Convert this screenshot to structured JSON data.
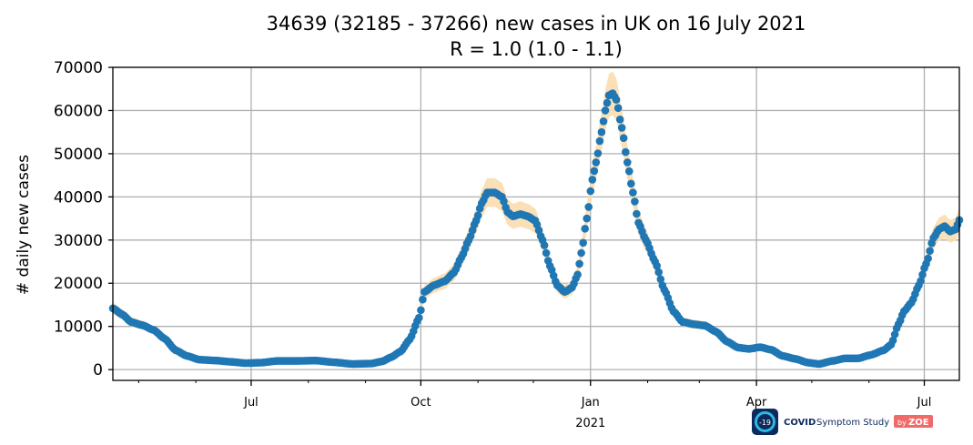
{
  "chart_data": {
    "type": "scatter",
    "title_line1": "34639 (32185 - 37266) new cases in UK on 16 July 2021",
    "title_line2": "R = 1.0 (1.0 - 1.1)",
    "ylabel": "# daily new cases",
    "xlabel": "",
    "ylim": [
      -2500,
      70000
    ],
    "xlim": [
      "2020-04-17",
      "2021-07-20"
    ],
    "yticks": [
      "0",
      "10000",
      "20000",
      "30000",
      "40000",
      "50000",
      "60000",
      "70000"
    ],
    "ytick_values": [
      0,
      10000,
      20000,
      30000,
      40000,
      50000,
      60000,
      70000
    ],
    "xticks": [
      {
        "date": "2020-07-01",
        "label": "Jul",
        "sublabel": ""
      },
      {
        "date": "2020-10-01",
        "label": "Oct",
        "sublabel": ""
      },
      {
        "date": "2021-01-01",
        "label": "Jan",
        "sublabel": "2021"
      },
      {
        "date": "2021-04-01",
        "label": "Apr",
        "sublabel": ""
      },
      {
        "date": "2021-07-01",
        "label": "Jul",
        "sublabel": ""
      }
    ],
    "minor_ticks": [
      "2020-05-01",
      "2020-06-01",
      "2020-08-01",
      "2020-09-01",
      "2020-11-01",
      "2020-12-01",
      "2021-02-01",
      "2021-03-01",
      "2021-05-01",
      "2021-06-01"
    ],
    "grid": true,
    "point_color": "#1f77b4",
    "band_color": "#fbdcae",
    "series": [
      {
        "values_knots": [
          [
            "2020-04-17",
            14200
          ],
          [
            "2020-04-22",
            12800
          ],
          [
            "2020-04-27",
            11000
          ],
          [
            "2020-05-03",
            10300
          ],
          [
            "2020-05-09",
            9200
          ],
          [
            "2020-05-15",
            7200
          ],
          [
            "2020-05-21",
            4500
          ],
          [
            "2020-05-27",
            3200
          ],
          [
            "2020-06-03",
            2300
          ],
          [
            "2020-06-12",
            2100
          ],
          [
            "2020-06-20",
            1800
          ],
          [
            "2020-06-28",
            1500
          ],
          [
            "2020-07-06",
            1600
          ],
          [
            "2020-07-15",
            2000
          ],
          [
            "2020-07-25",
            2000
          ],
          [
            "2020-08-05",
            2100
          ],
          [
            "2020-08-15",
            1700
          ],
          [
            "2020-08-25",
            1300
          ],
          [
            "2020-09-04",
            1400
          ],
          [
            "2020-09-10",
            1900
          ],
          [
            "2020-09-15",
            2900
          ],
          [
            "2020-09-20",
            4200
          ],
          [
            "2020-09-25",
            7000
          ],
          [
            "2020-09-30",
            12000
          ],
          [
            "2020-10-03",
            18000
          ],
          [
            "2020-10-08",
            19500
          ],
          [
            "2020-10-14",
            20500
          ],
          [
            "2020-10-19",
            22500
          ],
          [
            "2020-10-23",
            26000
          ],
          [
            "2020-10-27",
            30000
          ],
          [
            "2020-10-31",
            34500
          ],
          [
            "2020-11-03",
            38500
          ],
          [
            "2020-11-06",
            41000
          ],
          [
            "2020-11-10",
            41000
          ],
          [
            "2020-11-14",
            40000
          ],
          [
            "2020-11-17",
            36500
          ],
          [
            "2020-11-20",
            35500
          ],
          [
            "2020-11-24",
            36000
          ],
          [
            "2020-11-28",
            35500
          ],
          [
            "2020-12-02",
            34500
          ],
          [
            "2020-12-06",
            30000
          ],
          [
            "2020-12-10",
            24000
          ],
          [
            "2020-12-14",
            19500
          ],
          [
            "2020-12-18",
            18000
          ],
          [
            "2020-12-22",
            19000
          ],
          [
            "2020-12-25",
            22000
          ],
          [
            "2020-12-27",
            27000
          ],
          [
            "2020-12-30",
            35000
          ],
          [
            "2021-01-02",
            44000
          ],
          [
            "2021-01-04",
            48000
          ],
          [
            "2021-01-07",
            55000
          ],
          [
            "2021-01-09",
            60000
          ],
          [
            "2021-01-11",
            63500
          ],
          [
            "2021-01-13",
            64000
          ],
          [
            "2021-01-15",
            62500
          ],
          [
            "2021-01-18",
            56000
          ],
          [
            "2021-01-21",
            48000
          ],
          [
            "2021-01-24",
            41000
          ],
          [
            "2021-01-27",
            34000
          ],
          [
            "2021-01-31",
            30000
          ],
          [
            "2021-02-05",
            25000
          ],
          [
            "2021-02-10",
            18500
          ],
          [
            "2021-02-15",
            13500
          ],
          [
            "2021-02-20",
            11000
          ],
          [
            "2021-02-26",
            10500
          ],
          [
            "2021-03-04",
            10200
          ],
          [
            "2021-03-10",
            8800
          ],
          [
            "2021-03-16",
            6500
          ],
          [
            "2021-03-22",
            5100
          ],
          [
            "2021-03-28",
            4800
          ],
          [
            "2021-04-03",
            5200
          ],
          [
            "2021-04-09",
            4600
          ],
          [
            "2021-04-15",
            3200
          ],
          [
            "2021-04-22",
            2500
          ],
          [
            "2021-04-29",
            1600
          ],
          [
            "2021-05-05",
            1300
          ],
          [
            "2021-05-12",
            2000
          ],
          [
            "2021-05-19",
            2600
          ],
          [
            "2021-05-26",
            2600
          ],
          [
            "2021-06-02",
            3400
          ],
          [
            "2021-06-09",
            4500
          ],
          [
            "2021-06-13",
            5800
          ],
          [
            "2021-06-17",
            10500
          ],
          [
            "2021-06-20",
            13500
          ],
          [
            "2021-06-24",
            15500
          ],
          [
            "2021-06-28",
            19500
          ],
          [
            "2021-07-02",
            24500
          ],
          [
            "2021-07-06",
            30500
          ],
          [
            "2021-07-09",
            32500
          ],
          [
            "2021-07-12",
            33200
          ],
          [
            "2021-07-15",
            32000
          ],
          [
            "2021-07-18",
            32500
          ],
          [
            "2021-07-20",
            34639
          ]
        ]
      }
    ]
  },
  "logo": {
    "badge_text": "-19",
    "brand_bold": "COVID",
    "brand_rest": "Symptom Study",
    "by_text": "by",
    "zoe_text": "ZOE"
  }
}
